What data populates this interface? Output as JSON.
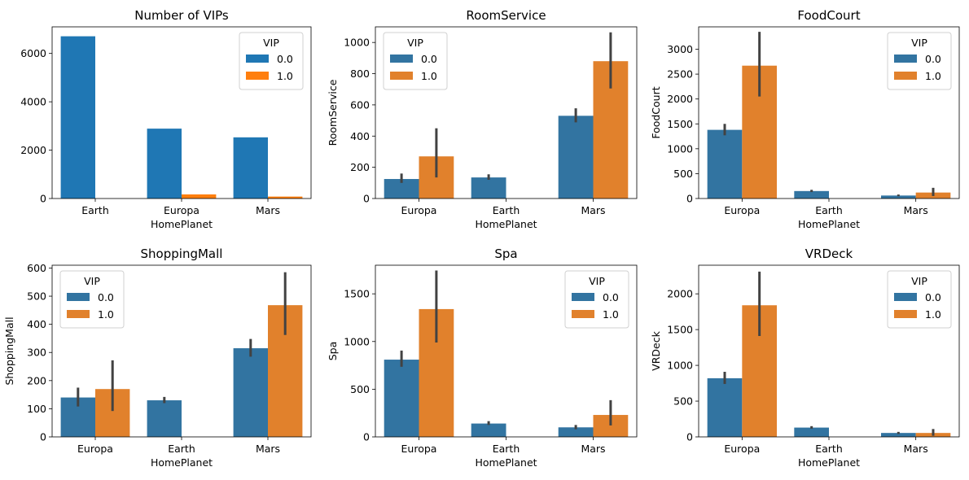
{
  "colors": {
    "bright": [
      "#1f77b4",
      "#ff7f0e"
    ],
    "muted": [
      "#3274a1",
      "#e1812c"
    ],
    "errorbar": "#424242"
  },
  "chart_data": [
    {
      "type": "bar",
      "title": "Number of VIPs",
      "xlabel": "HomePlanet",
      "ylabel": "",
      "ylim": [
        0,
        7100
      ],
      "yticks": [
        0,
        2000,
        4000,
        6000
      ],
      "categories": [
        "Earth",
        "Europa",
        "Mars"
      ],
      "legend": {
        "title": "VIP",
        "position": "top-right"
      },
      "palette": "bright",
      "series": [
        {
          "name": "0.0",
          "values": [
            6710,
            2890,
            2530
          ]
        },
        {
          "name": "1.0",
          "values": [
            0,
            170,
            80
          ]
        }
      ]
    },
    {
      "type": "bar",
      "title": "RoomService",
      "xlabel": "HomePlanet",
      "ylabel": "RoomService",
      "ylim": [
        0,
        1100
      ],
      "yticks": [
        0,
        200,
        400,
        600,
        800,
        1000
      ],
      "categories": [
        "Europa",
        "Earth",
        "Mars"
      ],
      "legend": {
        "title": "VIP",
        "position": "top-left"
      },
      "palette": "muted",
      "series": [
        {
          "name": "0.0",
          "values": [
            125,
            135,
            530
          ],
          "ci_low": [
            100,
            120,
            488
          ],
          "ci_high": [
            160,
            155,
            578
          ]
        },
        {
          "name": "1.0",
          "values": [
            270,
            null,
            880
          ],
          "ci_low": [
            135,
            null,
            705
          ],
          "ci_high": [
            450,
            null,
            1065
          ]
        }
      ]
    },
    {
      "type": "bar",
      "title": "FoodCourt",
      "xlabel": "HomePlanet",
      "ylabel": "FoodCourt",
      "ylim": [
        0,
        3450
      ],
      "yticks": [
        0,
        500,
        1000,
        1500,
        2000,
        2500,
        3000
      ],
      "categories": [
        "Europa",
        "Earth",
        "Mars"
      ],
      "legend": {
        "title": "VIP",
        "position": "top-right"
      },
      "palette": "muted",
      "series": [
        {
          "name": "0.0",
          "values": [
            1380,
            150,
            60
          ],
          "ci_low": [
            1270,
            130,
            45
          ],
          "ci_high": [
            1500,
            175,
            80
          ]
        },
        {
          "name": "1.0",
          "values": [
            2670,
            null,
            120
          ],
          "ci_low": [
            2050,
            null,
            50
          ],
          "ci_high": [
            3350,
            null,
            215
          ]
        }
      ]
    },
    {
      "type": "bar",
      "title": "ShoppingMall",
      "xlabel": "HomePlanet",
      "ylabel": "ShoppingMall",
      "ylim": [
        0,
        610
      ],
      "yticks": [
        0,
        100,
        200,
        300,
        400,
        500,
        600
      ],
      "categories": [
        "Europa",
        "Earth",
        "Mars"
      ],
      "legend": {
        "title": "VIP",
        "position": "top-left"
      },
      "palette": "muted",
      "series": [
        {
          "name": "0.0",
          "values": [
            140,
            130,
            315
          ],
          "ci_low": [
            108,
            120,
            285
          ],
          "ci_high": [
            175,
            142,
            348
          ]
        },
        {
          "name": "1.0",
          "values": [
            170,
            null,
            468
          ],
          "ci_low": [
            92,
            null,
            362
          ],
          "ci_high": [
            272,
            null,
            585
          ]
        }
      ]
    },
    {
      "type": "bar",
      "title": "Spa",
      "xlabel": "HomePlanet",
      "ylabel": "Spa",
      "ylim": [
        0,
        1800
      ],
      "yticks": [
        0,
        500,
        1000,
        1500
      ],
      "categories": [
        "Europa",
        "Earth",
        "Mars"
      ],
      "legend": {
        "title": "VIP",
        "position": "top-right"
      },
      "palette": "muted",
      "series": [
        {
          "name": "0.0",
          "values": [
            810,
            140,
            100
          ],
          "ci_low": [
            735,
            125,
            80
          ],
          "ci_high": [
            905,
            165,
            125
          ]
        },
        {
          "name": "1.0",
          "values": [
            1340,
            null,
            230
          ],
          "ci_low": [
            990,
            null,
            120
          ],
          "ci_high": [
            1745,
            null,
            385
          ]
        }
      ]
    },
    {
      "type": "bar",
      "title": "VRDeck",
      "xlabel": "HomePlanet",
      "ylabel": "VRDeck",
      "ylim": [
        0,
        2400
      ],
      "yticks": [
        0,
        500,
        1000,
        1500,
        2000
      ],
      "categories": [
        "Europa",
        "Earth",
        "Mars"
      ],
      "legend": {
        "title": "VIP",
        "position": "top-right"
      },
      "palette": "muted",
      "series": [
        {
          "name": "0.0",
          "values": [
            820,
            130,
            55
          ],
          "ci_low": [
            740,
            115,
            40
          ],
          "ci_high": [
            910,
            150,
            70
          ]
        },
        {
          "name": "1.0",
          "values": [
            1840,
            null,
            55
          ],
          "ci_low": [
            1410,
            null,
            15
          ],
          "ci_high": [
            2310,
            null,
            110
          ]
        }
      ]
    }
  ]
}
